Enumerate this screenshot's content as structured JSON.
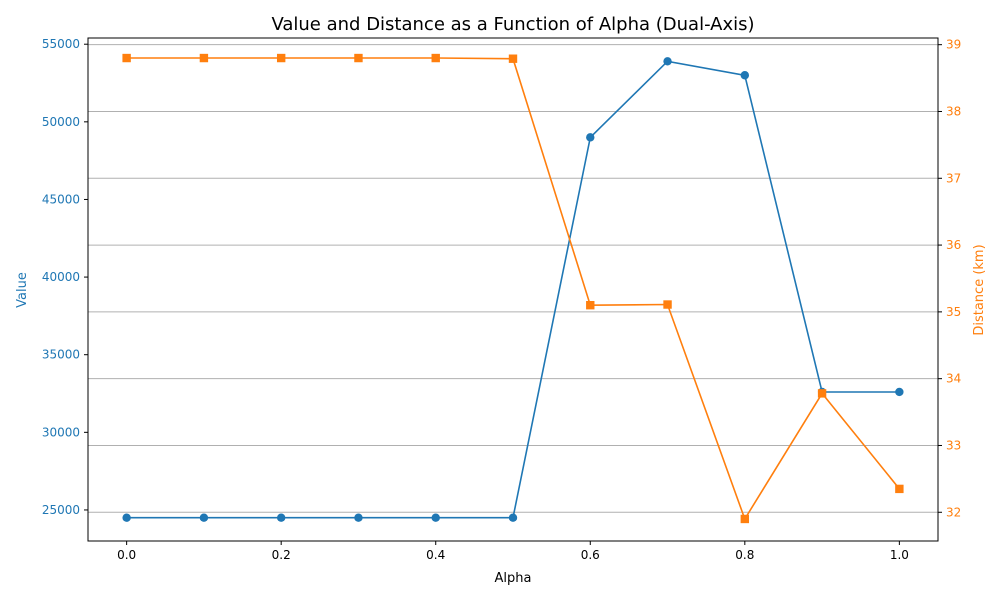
{
  "chart_data": {
    "type": "line",
    "title": "Value and Distance as a Function of Alpha (Dual-Axis)",
    "xlabel": "Alpha",
    "ylabel_left": "Value",
    "ylabel_right": "Distance (km)",
    "xlim": [
      -0.05,
      1.05
    ],
    "ylim_left": [
      23000,
      55400
    ],
    "ylim_right": [
      31.57,
      39.1
    ],
    "x": [
      0.0,
      0.1,
      0.2,
      0.3,
      0.4,
      0.5,
      0.6,
      0.7,
      0.8,
      0.9,
      1.0
    ],
    "x_ticks": [
      "0.0",
      "0.2",
      "0.4",
      "0.6",
      "0.8",
      "1.0"
    ],
    "y_left_ticks": [
      "25000",
      "30000",
      "35000",
      "40000",
      "45000",
      "50000",
      "55000"
    ],
    "y_right_ticks": [
      "32",
      "33",
      "34",
      "35",
      "36",
      "37",
      "38",
      "39"
    ],
    "grid": "right-axis horizontal lines",
    "series": [
      {
        "axis": "left",
        "color": "#1f77b4",
        "marker": "circle",
        "values": [
          24500,
          24500,
          24500,
          24500,
          24500,
          24500,
          49000,
          53900,
          53000,
          32600,
          32600
        ]
      },
      {
        "axis": "right",
        "color": "#ff7f0e",
        "marker": "square",
        "values": [
          38.8,
          38.8,
          38.8,
          38.8,
          38.8,
          38.79,
          35.1,
          35.11,
          31.9,
          33.78,
          32.35
        ]
      }
    ]
  }
}
